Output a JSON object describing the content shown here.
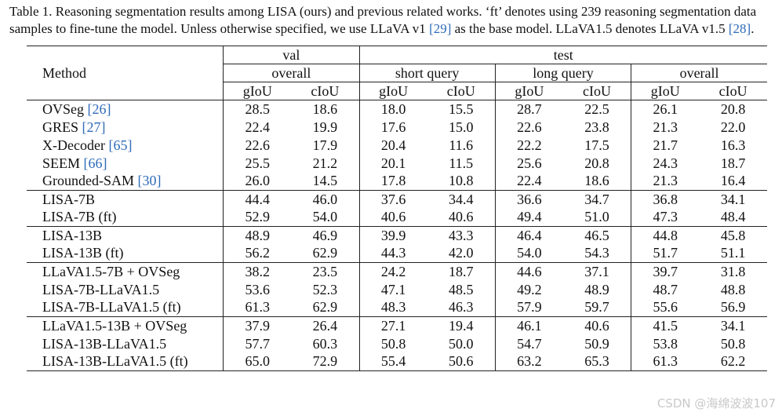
{
  "caption": {
    "prefix": "Table 1. Reasoning segmentation results among LISA (ours) and previous related works. ‘ft’ denotes using 239 reasoning segmentation data samples to fine-tune the model. Unless otherwise specified, we use LLaVA v1 ",
    "cite1": "[29]",
    "middle": " as the base model. LLaVA1.5 denotes LLaVA v1.5 ",
    "cite2": "[28]",
    "suffix": "."
  },
  "header": {
    "method": "Method",
    "val": "val",
    "test": "test",
    "groups": [
      "overall",
      "short query",
      "long query",
      "overall"
    ],
    "metrics": [
      "gIoU",
      "cIoU",
      "gIoU",
      "cIoU",
      "gIoU",
      "cIoU",
      "gIoU",
      "cIoU"
    ]
  },
  "sections": [
    [
      {
        "name": "OVSeg ",
        "cite": "[26]",
        "values": [
          "28.5",
          "18.6",
          "18.0",
          "15.5",
          "28.7",
          "22.5",
          "26.1",
          "20.8"
        ]
      },
      {
        "name": "GRES ",
        "cite": "[27]",
        "values": [
          "22.4",
          "19.9",
          "17.6",
          "15.0",
          "22.6",
          "23.8",
          "21.3",
          "22.0"
        ]
      },
      {
        "name": "X-Decoder ",
        "cite": "[65]",
        "values": [
          "22.6",
          "17.9",
          "20.4",
          "11.6",
          "22.2",
          "17.5",
          "21.7",
          "16.3"
        ]
      },
      {
        "name": "SEEM ",
        "cite": "[66]",
        "values": [
          "25.5",
          "21.2",
          "20.1",
          "11.5",
          "25.6",
          "20.8",
          "24.3",
          "18.7"
        ]
      },
      {
        "name": "Grounded-SAM ",
        "cite": "[30]",
        "values": [
          "26.0",
          "14.5",
          "17.8",
          "10.8",
          "22.4",
          "18.6",
          "21.3",
          "16.4"
        ]
      }
    ],
    [
      {
        "name": "LISA-7B",
        "cite": "",
        "values": [
          "44.4",
          "46.0",
          "37.6",
          "34.4",
          "36.6",
          "34.7",
          "36.8",
          "34.1"
        ]
      },
      {
        "name": "LISA-7B (ft)",
        "cite": "",
        "values": [
          "52.9",
          "54.0",
          "40.6",
          "40.6",
          "49.4",
          "51.0",
          "47.3",
          "48.4"
        ]
      }
    ],
    [
      {
        "name": "LISA-13B",
        "cite": "",
        "values": [
          "48.9",
          "46.9",
          "39.9",
          "43.3",
          "46.4",
          "46.5",
          "44.8",
          "45.8"
        ]
      },
      {
        "name": "LISA-13B (ft)",
        "cite": "",
        "values": [
          "56.2",
          "62.9",
          "44.3",
          "42.0",
          "54.0",
          "54.3",
          "51.7",
          "51.1"
        ]
      }
    ],
    [
      {
        "name": "LLaVA1.5-7B + OVSeg",
        "cite": "",
        "values": [
          "38.2",
          "23.5",
          "24.2",
          "18.7",
          "44.6",
          "37.1",
          "39.7",
          "31.8"
        ]
      },
      {
        "name": "LISA-7B-LLaVA1.5",
        "cite": "",
        "values": [
          "53.6",
          "52.3",
          "47.1",
          "48.5",
          "49.2",
          "48.9",
          "48.7",
          "48.8"
        ]
      },
      {
        "name": "LISA-7B-LLaVA1.5 (ft)",
        "cite": "",
        "values": [
          "61.3",
          "62.9",
          "48.3",
          "46.3",
          "57.9",
          "59.7",
          "55.6",
          "56.9"
        ]
      }
    ],
    [
      {
        "name": "LLaVA1.5-13B + OVSeg",
        "cite": "",
        "values": [
          "37.9",
          "26.4",
          "27.1",
          "19.4",
          "46.1",
          "40.6",
          "41.5",
          "34.1"
        ]
      },
      {
        "name": "LISA-13B-LLaVA1.5",
        "cite": "",
        "values": [
          "57.7",
          "60.3",
          "50.8",
          "50.0",
          "54.7",
          "50.9",
          "53.8",
          "50.8"
        ]
      },
      {
        "name": "LISA-13B-LLaVA1.5 (ft)",
        "cite": "",
        "bold": true,
        "values": [
          "65.0",
          "72.9",
          "55.4",
          "50.6",
          "63.2",
          "65.3",
          "61.3",
          "62.2"
        ]
      }
    ]
  ],
  "colors": {
    "citation": "#2e6bb8",
    "text": "#111111",
    "rule": "#222222"
  },
  "watermark": "CSDN @海绵波波107"
}
